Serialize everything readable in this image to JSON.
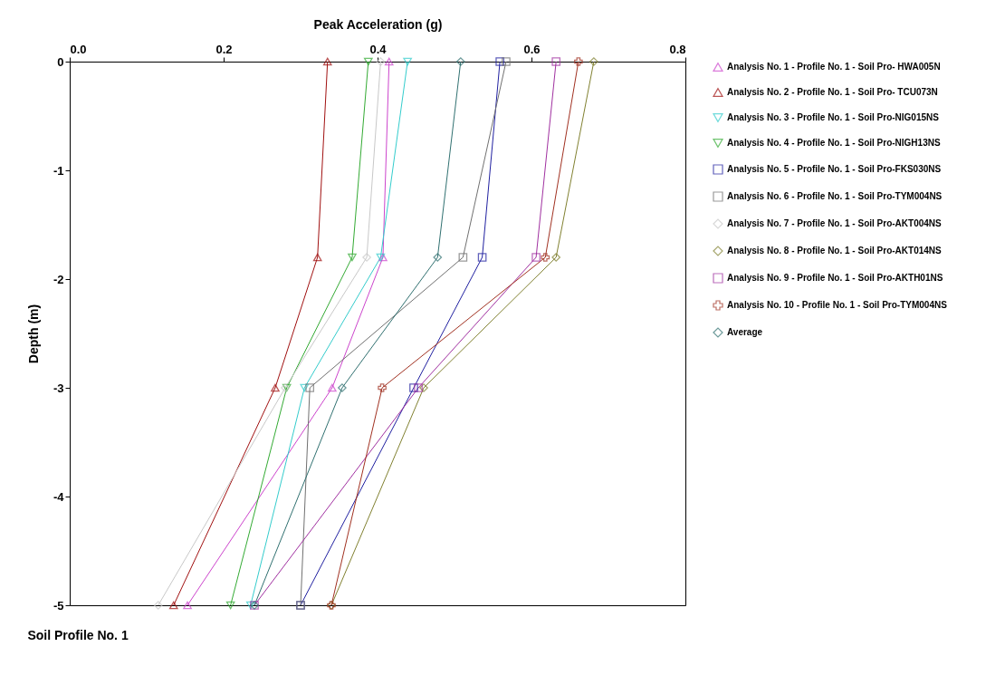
{
  "chart_data": {
    "type": "line",
    "title": "Soil Profile No. 1",
    "xlabel": "Peak Acceleration (g)",
    "ylabel": "Depth (m)",
    "xlim": [
      0,
      0.8
    ],
    "xticks": [
      {
        "value": 0,
        "label": "0.0"
      },
      0.2,
      0.4,
      0.6,
      {
        "value": 0.8,
        "label": "0.8"
      }
    ],
    "ylim": [
      -5,
      0
    ],
    "yticks": [
      0,
      -1,
      -2,
      -3,
      -4,
      -5
    ],
    "grid": false,
    "legend": "right",
    "line_style": "solid",
    "series": [
      {
        "name": "Analysis No. 1 - Profile No. 1 - Soil Pro- HWA005N",
        "color": "#cc44cc",
        "marker": "triangle",
        "x": [
          0.415,
          0.407,
          0.341,
          0.153
        ],
        "values": [
          0,
          -1.8,
          -3,
          -5
        ]
      },
      {
        "name": "Analysis No. 2 - Profile No. 1 - Soil Pro- TCU073N",
        "color": "#a01010",
        "marker": "triangle",
        "x": [
          0.335,
          0.322,
          0.267,
          0.135
        ],
        "values": [
          0,
          -1.8,
          -3,
          -5
        ]
      },
      {
        "name": "Analysis No. 3 - Profile No. 1 - Soil Pro-NIG015NS",
        "color": "#33cccc",
        "marker": "triangle-down",
        "x": [
          0.439,
          0.404,
          0.305,
          0.235
        ],
        "values": [
          0,
          -1.8,
          -3,
          -5
        ]
      },
      {
        "name": "Analysis No. 4 - Profile No. 1 - Soil Pro-NIGH13NS",
        "color": "#33aa33",
        "marker": "triangle-down",
        "x": [
          0.388,
          0.367,
          0.282,
          0.209
        ],
        "values": [
          0,
          -1.8,
          -3,
          -5
        ]
      },
      {
        "name": "Analysis No. 5 - Profile No. 1 - Soil Pro-FKS030NS",
        "color": "#2020a0",
        "marker": "square",
        "x": [
          0.559,
          0.536,
          0.447,
          0.3
        ],
        "values": [
          0,
          -1.8,
          -3,
          -5
        ]
      },
      {
        "name": "Analysis No. 6 - Profile No. 1 - Soil Pro-TYM004NS",
        "color": "#707070",
        "marker": "square",
        "x": [
          0.567,
          0.511,
          0.312,
          0.3
        ],
        "values": [
          0,
          -1.8,
          -3,
          -5
        ]
      },
      {
        "name": "Analysis No. 7 - Profile No. 1 - Soil Pro-AKT004NS",
        "color": "#c8c8c8",
        "marker": "diamond",
        "x": [
          0.404,
          0.386,
          0.28,
          0.115
        ],
        "values": [
          0,
          -1.8,
          -3,
          -5
        ]
      },
      {
        "name": "Analysis No. 8 - Profile No. 1 - Soil Pro-AKT014NS",
        "color": "#808030",
        "marker": "diamond",
        "x": [
          0.681,
          0.632,
          0.46,
          0.34
        ],
        "values": [
          0,
          -1.8,
          -3,
          -5
        ]
      },
      {
        "name": "Analysis No. 9 - Profile No. 1 - Soil Pro-AKTH01NS",
        "color": "#a030a0",
        "marker": "square",
        "x": [
          0.632,
          0.606,
          0.453,
          0.24
        ],
        "values": [
          0,
          -1.8,
          -3,
          -5
        ]
      },
      {
        "name": "Analysis No. 10 - Profile No. 1 - Soil Pro-TYM004NS",
        "color": "#a03020",
        "marker": "cross",
        "x": [
          0.661,
          0.618,
          0.406,
          0.34
        ],
        "values": [
          0,
          -1.8,
          -3,
          -5
        ]
      },
      {
        "name": "Average",
        "color": "#307070",
        "marker": "diamond",
        "x": [
          0.508,
          0.478,
          0.354,
          0.24
        ],
        "values": [
          0,
          -1.8,
          -3,
          -5
        ]
      }
    ]
  }
}
